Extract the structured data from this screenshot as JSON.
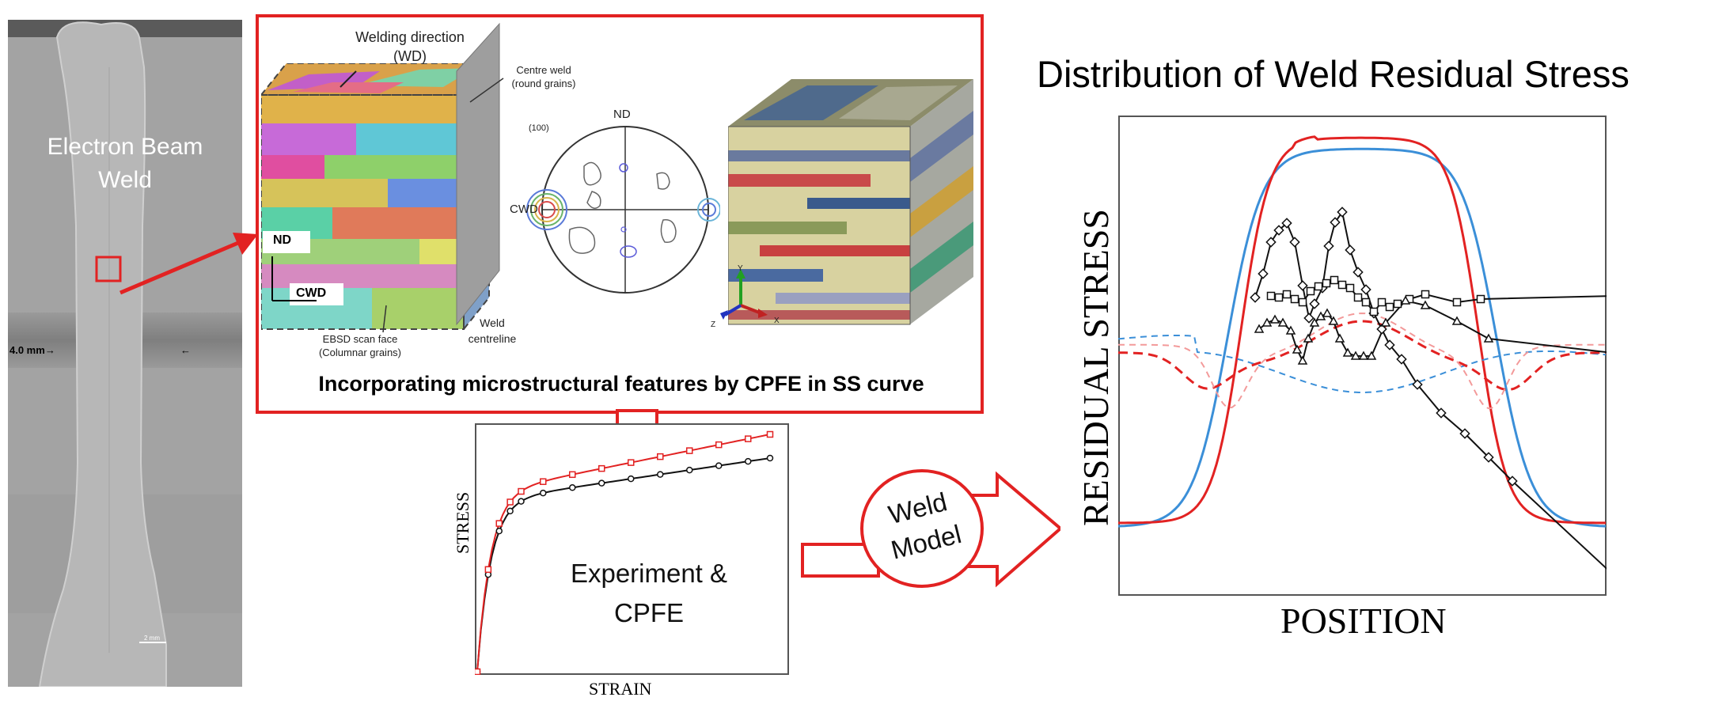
{
  "weld_image": {
    "title_line1": "Electron Beam",
    "title_line2": "Weld",
    "width_label": "4.0 mm",
    "scale_label": "2 mm"
  },
  "microstructure_panel": {
    "welding_direction_line1": "Welding direction",
    "welding_direction_line2": "(WD)",
    "centre_weld_line1": "Centre weld",
    "centre_weld_line2": "(round grains)",
    "nd_label": "ND",
    "cwd_label": "CWD",
    "ebsd_line1": "EBSD scan face",
    "ebsd_line2": "(Columnar grains)",
    "weld_centreline_line1": "Weld",
    "weld_centreline_line2": "centreline",
    "pole_figure_title": "(100)",
    "pole_nd": "ND",
    "pole_cwd": "CWD",
    "axis_y": "Y",
    "axis_z": "Z",
    "axis_x": "X",
    "caption": "Incorporating microstructural features  by CPFE in SS curve"
  },
  "ss_curve": {
    "ylabel": "STRESS",
    "xlabel": "STRAIN",
    "legend_line1": "Experiment  &",
    "legend_line2": "CPFE"
  },
  "weld_model": {
    "line1": "Weld",
    "line2": "Model"
  },
  "residual_stress": {
    "title": "Distribution of Weld Residual Stress",
    "ylabel": "RESIDUAL STRESS",
    "xlabel": "POSITION"
  },
  "colors": {
    "accent_red": "#e22222",
    "blue": "#3b8fd8",
    "black": "#111111"
  }
}
